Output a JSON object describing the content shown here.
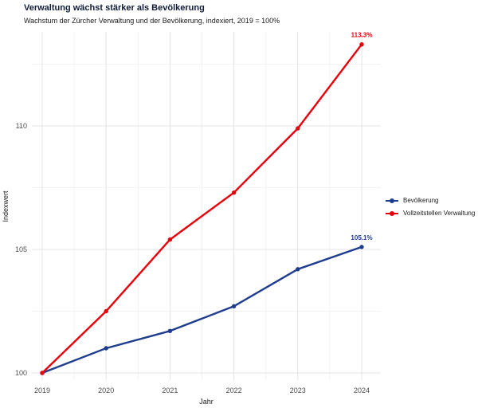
{
  "colors": {
    "background": "#ffffff",
    "title": "#101c3a",
    "subtitle": "#1a1a1a",
    "grid_major": "#e4e4e4",
    "grid_minor": "#f2f2f2",
    "tick_label": "#4d4d4d",
    "axis_title": "#1a1a1a",
    "legend_text": "#1a1a1a",
    "series_blue": "#1f3d8f",
    "series_red": "#e8000b"
  },
  "chart_data": {
    "type": "line",
    "title": "Verwaltung wächst stärker als Bevölkerung",
    "subtitle": "Wachstum der Zürcher Verwaltung und der Bevölkerung, indexiert, 2019 = 100%",
    "xlabel": "Jahr",
    "ylabel": "Indexwert",
    "x": [
      2019,
      2020,
      2021,
      2022,
      2023,
      2024
    ],
    "x_tick_labels": [
      "2019",
      "2020",
      "2021",
      "2022",
      "2023",
      "2024"
    ],
    "y_ticks": [
      100,
      105,
      110
    ],
    "y_minor_ticks": [
      102.5,
      107.5,
      112.5
    ],
    "x_minor_ticks": [
      2019.5,
      2020.5,
      2021.5,
      2022.5,
      2023.5
    ],
    "xlim": [
      2018.84,
      2024.31
    ],
    "ylim": [
      99.7,
      113.75
    ],
    "grid": true,
    "legend_position": "right",
    "series": [
      {
        "name": "Bevölkerung",
        "color": "#1f3d8f",
        "values": [
          100,
          101.0,
          101.7,
          102.7,
          104.2,
          105.1
        ],
        "end_label": "105.1%"
      },
      {
        "name": "Vollzeitstellen Verwaltung",
        "color": "#e8000b",
        "values": [
          100,
          102.5,
          105.4,
          107.3,
          109.9,
          113.3
        ],
        "end_label": "113.3%"
      }
    ]
  }
}
